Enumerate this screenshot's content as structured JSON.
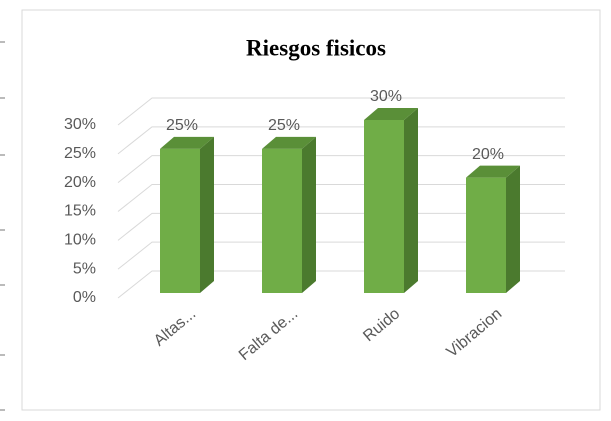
{
  "chart_data": {
    "type": "bar3d",
    "title": "Riesgos fisicos",
    "categories": [
      "Altas...",
      "Falta de...",
      "Ruido",
      "Vibracion"
    ],
    "values": [
      25,
      25,
      30,
      20
    ],
    "value_labels": [
      "25%",
      "25%",
      "30%",
      "20%"
    ],
    "color": "#70ad47",
    "ylim": [
      0,
      30
    ],
    "yticks": [
      {
        "value": 0,
        "label": "0%"
      },
      {
        "value": 5,
        "label": "5%"
      },
      {
        "value": 10,
        "label": "10%"
      },
      {
        "value": 15,
        "label": "15%"
      },
      {
        "value": 20,
        "label": "20%"
      },
      {
        "value": 25,
        "label": "25%"
      },
      {
        "value": 30,
        "label": "30%"
      }
    ],
    "grid": true
  }
}
